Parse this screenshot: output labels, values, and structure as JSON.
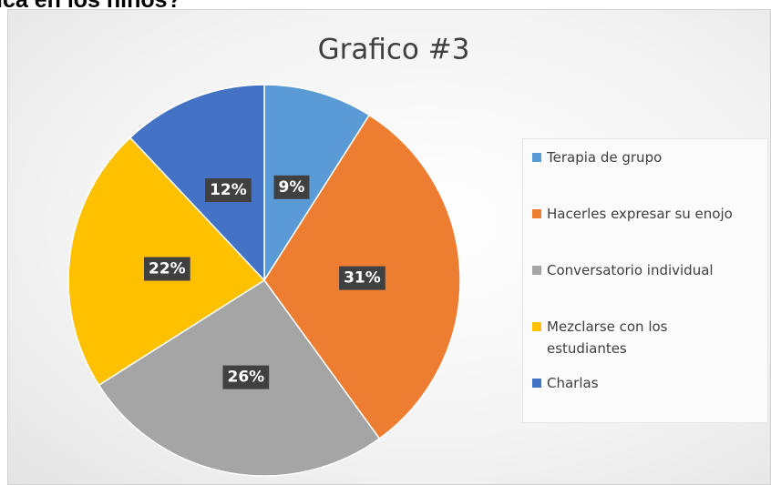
{
  "heading": "ica en los niños?",
  "chart_data": {
    "type": "pie",
    "title": "Grafico #3",
    "categories": [
      "Terapia de grupo",
      "Hacerles expresar su enojo",
      "Conversatorio individual",
      "Mezclarse con los estudiantes",
      "Charlas"
    ],
    "values": [
      9,
      31,
      26,
      22,
      12
    ],
    "value_labels": [
      "9%",
      "31%",
      "26%",
      "22%",
      "12%"
    ],
    "colors": [
      "#5b9bd5",
      "#ed7d31",
      "#a5a5a5",
      "#ffc000",
      "#4472c4"
    ],
    "legend": "right"
  }
}
